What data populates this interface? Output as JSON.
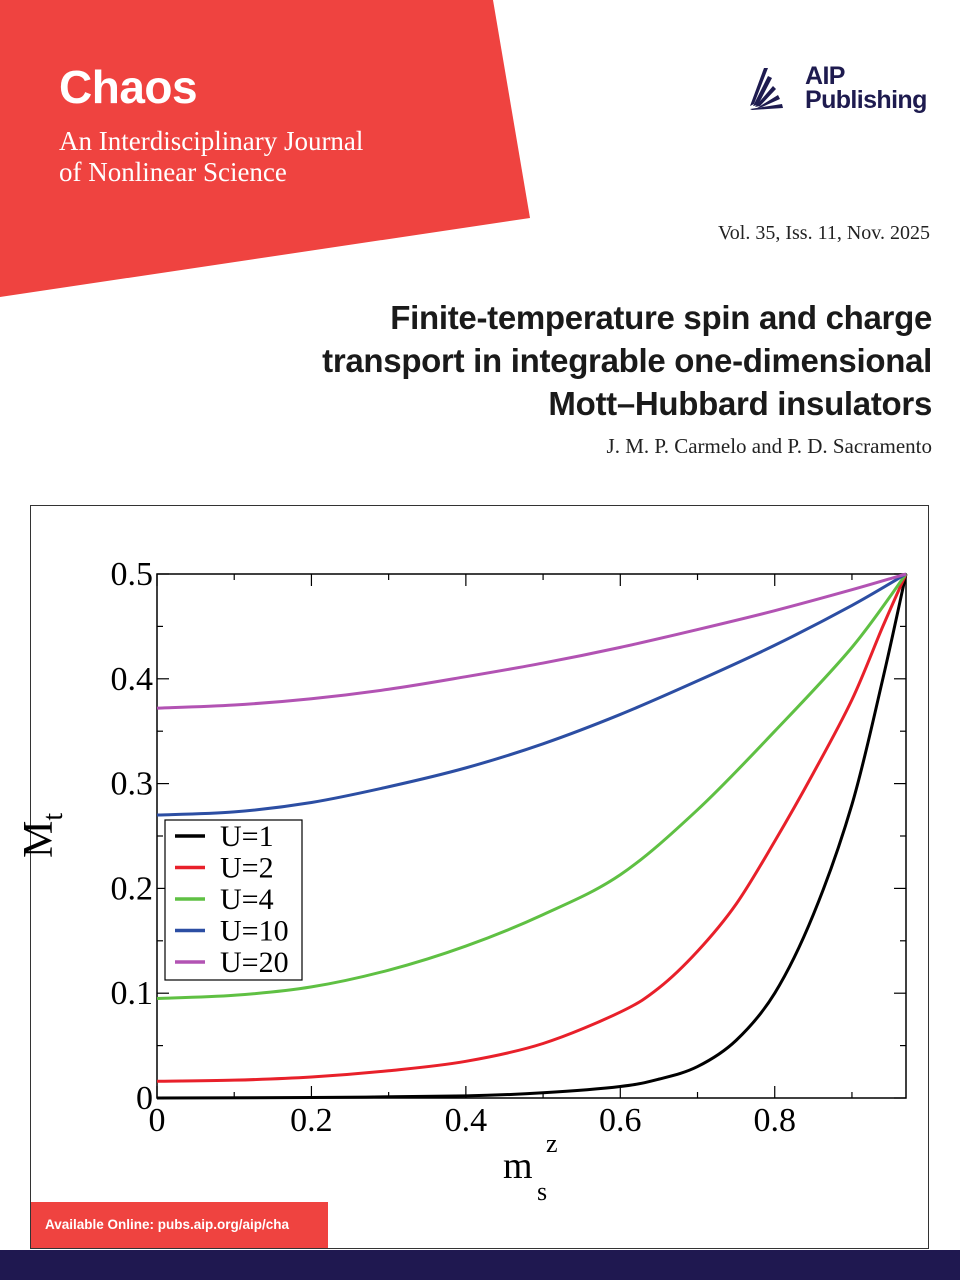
{
  "cover": {
    "journal_title": "Chaos",
    "journal_subtitle_line1": "An Interdisciplinary Journal",
    "journal_subtitle_line2": "of Nonlinear Science",
    "publisher_line1": "AIP",
    "publisher_line2": "Publishing",
    "issue": "Vol. 35, Iss. 11, Nov. 2025",
    "article_title_line1": "Finite-temperature spin and charge",
    "article_title_line2": "transport in integrable one-dimensional",
    "article_title_line3": "Mott–Hubbard insulators",
    "authors": "J. M. P. Carmelo and P. D. Sacramento",
    "available_online": "Available Online: pubs.aip.org/aip/cha"
  },
  "colors": {
    "brand_red": "#ef4340",
    "navy": "#1f1850"
  },
  "chart_data": {
    "type": "line",
    "title": "",
    "xlabel": "m",
    "xlabel_sub": "s",
    "xlabel_sup": "z",
    "ylabel": "M",
    "ylabel_sub": "t",
    "xlim": [
      0,
      0.97
    ],
    "ylim": [
      0,
      0.5
    ],
    "xticks": [
      0,
      0.2,
      0.4,
      0.6,
      0.8
    ],
    "xtick_labels": [
      "0",
      "0.2",
      "0.4",
      "0.6",
      "0.8"
    ],
    "yticks": [
      0,
      0.1,
      0.2,
      0.3,
      0.4,
      0.5
    ],
    "ytick_labels": [
      "0",
      "0.1",
      "0.2",
      "0.3",
      "0.4",
      "0.5"
    ],
    "grid": false,
    "legend_position": "middle-left",
    "series": [
      {
        "name": "U=1",
        "color": "#000000",
        "x": [
          0,
          0.2,
          0.4,
          0.5,
          0.6,
          0.65,
          0.7,
          0.75,
          0.8,
          0.85,
          0.9,
          0.94,
          0.97
        ],
        "y": [
          0,
          0.0005,
          0.002,
          0.005,
          0.011,
          0.018,
          0.03,
          0.055,
          0.1,
          0.175,
          0.28,
          0.4,
          0.5
        ]
      },
      {
        "name": "U=2",
        "color": "#e8202a",
        "x": [
          0,
          0.1,
          0.2,
          0.3,
          0.4,
          0.5,
          0.6,
          0.65,
          0.7,
          0.75,
          0.8,
          0.85,
          0.9,
          0.94,
          0.97
        ],
        "y": [
          0.016,
          0.017,
          0.02,
          0.026,
          0.035,
          0.052,
          0.082,
          0.105,
          0.14,
          0.185,
          0.245,
          0.31,
          0.38,
          0.45,
          0.5
        ]
      },
      {
        "name": "U=4",
        "color": "#5fc043",
        "x": [
          0,
          0.1,
          0.2,
          0.3,
          0.4,
          0.5,
          0.6,
          0.7,
          0.8,
          0.9,
          0.97
        ],
        "y": [
          0.095,
          0.098,
          0.106,
          0.122,
          0.145,
          0.175,
          0.213,
          0.275,
          0.35,
          0.43,
          0.5
        ]
      },
      {
        "name": "U=10",
        "color": "#2c4ea3",
        "x": [
          0,
          0.1,
          0.2,
          0.3,
          0.4,
          0.5,
          0.6,
          0.7,
          0.8,
          0.9,
          0.97
        ],
        "y": [
          0.27,
          0.273,
          0.282,
          0.297,
          0.315,
          0.338,
          0.366,
          0.398,
          0.432,
          0.47,
          0.5
        ]
      },
      {
        "name": "U=20",
        "color": "#b253b3",
        "x": [
          0,
          0.1,
          0.2,
          0.3,
          0.4,
          0.5,
          0.6,
          0.7,
          0.8,
          0.9,
          0.97
        ],
        "y": [
          0.372,
          0.375,
          0.381,
          0.39,
          0.402,
          0.415,
          0.43,
          0.447,
          0.465,
          0.485,
          0.5
        ]
      }
    ]
  }
}
